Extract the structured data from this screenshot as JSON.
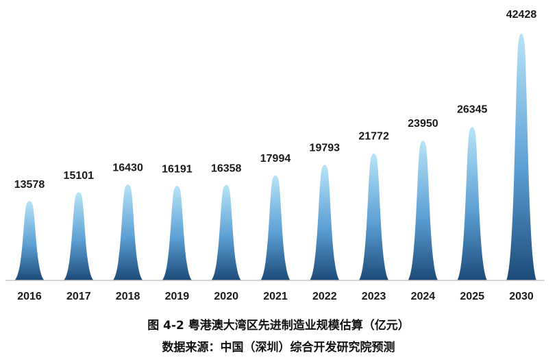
{
  "chart_data": {
    "type": "bar",
    "bar_style": "peak",
    "categories": [
      "2016",
      "2017",
      "2018",
      "2019",
      "2020",
      "2021",
      "2022",
      "2023",
      "2024",
      "2025",
      "2030"
    ],
    "values": [
      13578,
      15101,
      16430,
      16191,
      16358,
      17994,
      19793,
      21772,
      23950,
      26345,
      42428
    ],
    "title": "图 4-2  粤港澳大湾区先进制造业规模估算（亿元）",
    "source": "数据来源：中国（深圳）综合开发研究院预测",
    "xlabel": "",
    "ylabel": "",
    "ylim": [
      0,
      42428
    ],
    "grid": false,
    "legend": "none",
    "colors": {
      "bar_top": "#b8e4f7",
      "bar_mid": "#5b9fd4",
      "bar_bottom": "#1c4a78",
      "axis": "#c8c8c8"
    }
  }
}
